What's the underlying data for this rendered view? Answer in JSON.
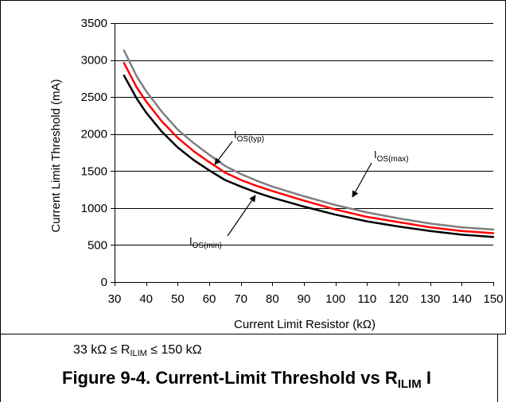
{
  "chart_data": {
    "type": "line",
    "xlabel": "Current Limit Resistor (kΩ)",
    "ylabel": "Current Limit Threshold (mA)",
    "xlim": [
      30,
      150
    ],
    "ylim": [
      0,
      3500
    ],
    "xticks": [
      30,
      40,
      50,
      60,
      70,
      80,
      90,
      100,
      110,
      120,
      130,
      140,
      150
    ],
    "yticks": [
      0,
      500,
      1000,
      1500,
      2000,
      2500,
      3000,
      3500
    ],
    "grid": "horizontal",
    "series": [
      {
        "color": "#7f7f7f",
        "x": [
          33,
          37,
          40,
          45,
          50,
          55,
          60,
          65,
          70,
          75,
          80,
          90,
          100,
          110,
          120,
          130,
          140,
          150
        ],
        "y": [
          3130,
          2780,
          2580,
          2300,
          2060,
          1880,
          1720,
          1570,
          1460,
          1370,
          1290,
          1160,
          1040,
          940,
          860,
          790,
          740,
          710
        ]
      },
      {
        "color": "#ff0000",
        "x": [
          33,
          37,
          40,
          45,
          50,
          55,
          60,
          65,
          70,
          75,
          80,
          90,
          100,
          110,
          120,
          130,
          140,
          150
        ],
        "y": [
          2960,
          2630,
          2440,
          2170,
          1950,
          1770,
          1620,
          1480,
          1380,
          1300,
          1230,
          1100,
          980,
          880,
          810,
          740,
          690,
          660
        ]
      },
      {
        "color": "#000000",
        "x": [
          33,
          37,
          40,
          45,
          50,
          55,
          60,
          65,
          70,
          75,
          80,
          90,
          100,
          110,
          120,
          130,
          140,
          150
        ],
        "y": [
          2790,
          2480,
          2290,
          2030,
          1820,
          1650,
          1510,
          1380,
          1290,
          1210,
          1140,
          1020,
          910,
          820,
          750,
          690,
          640,
          610
        ]
      }
    ],
    "annotations": [
      {
        "main": "I",
        "sub": "OS(typ)"
      },
      {
        "main": "I",
        "sub": "OS(max)"
      },
      {
        "main": "I",
        "sub": "OS(min)"
      }
    ]
  },
  "note": {
    "prefix": "33 kΩ ≤ R",
    "sub": "ILIM",
    "suffix": " ≤ 150 kΩ"
  },
  "caption": {
    "prefix": "Figure 9-4. Current-Limit Threshold vs R",
    "sub": "ILIM",
    "suffix": " I"
  }
}
